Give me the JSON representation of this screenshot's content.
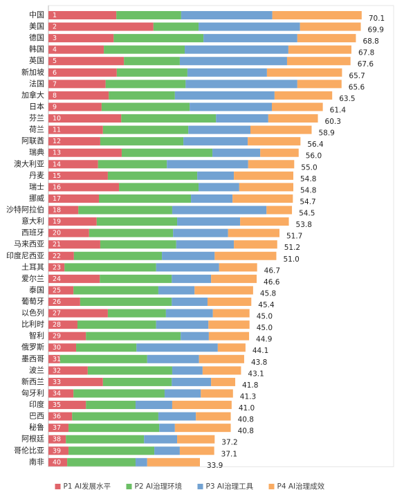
{
  "chart_data": {
    "type": "stacked-bar-horizontal",
    "categories": [
      "中国",
      "美国",
      "德国",
      "韩国",
      "英国",
      "新加坡",
      "法国",
      "加拿大",
      "日本",
      "芬兰",
      "荷兰",
      "阿联酋",
      "瑞典",
      "澳大利亚",
      "丹麦",
      "瑞士",
      "挪威",
      "沙特阿拉伯",
      "意大利",
      "西班牙",
      "马来西亚",
      "印度尼西亚",
      "土耳其",
      "爱尔兰",
      "泰国",
      "葡萄牙",
      "以色列",
      "比利时",
      "智利",
      "俄罗斯",
      "墨西哥",
      "波兰",
      "新西兰",
      "匈牙利",
      "印度",
      "巴西",
      "秘鲁",
      "阿根廷",
      "哥伦比亚",
      "南非"
    ],
    "ranks": [
      1,
      2,
      3,
      4,
      5,
      6,
      7,
      8,
      9,
      10,
      11,
      12,
      13,
      14,
      15,
      16,
      17,
      18,
      19,
      20,
      21,
      22,
      23,
      24,
      25,
      26,
      27,
      28,
      29,
      30,
      31,
      32,
      33,
      34,
      35,
      36,
      37,
      38,
      39,
      40
    ],
    "totals": [
      70.1,
      69.9,
      68.8,
      67.8,
      67.6,
      65.7,
      65.6,
      63.5,
      61.4,
      60.3,
      58.9,
      56.4,
      56.0,
      55.0,
      54.8,
      54.8,
      54.7,
      54.5,
      53.8,
      51.7,
      51.2,
      51.0,
      46.7,
      46.6,
      45.8,
      45.4,
      45.0,
      45.0,
      44.9,
      44.1,
      43.8,
      43.1,
      41.8,
      41.3,
      41.0,
      40.8,
      40.8,
      37.2,
      37.1,
      33.9
    ],
    "total_labels": [
      "70.1",
      "69.9",
      "68.8",
      "67.8",
      "67.6",
      "65.7",
      "65.6",
      "63.5",
      "61.4",
      "60.3",
      "58.9",
      "56.4",
      "56.0",
      "55.0",
      "54.8",
      "54.8",
      "54.7",
      "54.5",
      "53.8",
      "51.7",
      "51.2",
      "51.0",
      "46.7",
      "46.6",
      "45.8",
      "45.4",
      "45.0",
      "45.0",
      "44.9",
      "44.1",
      "43.8",
      "43.1",
      "41.8",
      "41.3",
      "41.0",
      "40.8",
      "40.8",
      "37.2",
      "37.1",
      "33.9"
    ],
    "series": [
      {
        "name": "P1 AI发展水平",
        "color": "#e0646a",
        "values": [
          15.2,
          23.5,
          14.6,
          12.4,
          16.9,
          15.3,
          12.8,
          13.5,
          11.9,
          16.3,
          12.2,
          11.6,
          16.4,
          11.1,
          13.3,
          15.8,
          11.3,
          6.7,
          10.8,
          9.1,
          11.6,
          5.7,
          3.6,
          11.5,
          5.6,
          7.1,
          13.3,
          6.5,
          8.4,
          6.2,
          2.6,
          8.8,
          12.2,
          5.6,
          8.4,
          5.3,
          4.5,
          3.9,
          4.5,
          4.2
        ]
      },
      {
        "name": "P2 AI治理环境",
        "color": "#6cbf66",
        "values": [
          14.5,
          10.1,
          20.1,
          18.1,
          12.5,
          15.8,
          17.9,
          14.8,
          19.7,
          21.2,
          19.1,
          18.6,
          20.3,
          15.4,
          20.0,
          17.8,
          20.6,
          21.0,
          18.0,
          18.8,
          17.0,
          19.7,
          20.5,
          16.1,
          19.0,
          20.5,
          13.0,
          17.6,
          21.2,
          13.5,
          19.5,
          18.9,
          15.4,
          20.4,
          11.1,
          19.3,
          20.3,
          17.5,
          19.2,
          15.3
        ]
      },
      {
        "name": "P3 AI治理工具",
        "color": "#72a2d2",
        "values": [
          20.4,
          22.7,
          21.0,
          23.2,
          24.0,
          17.8,
          25.0,
          22.3,
          18.4,
          11.7,
          13.9,
          14.4,
          10.7,
          18.2,
          8.2,
          9.1,
          9.3,
          21.1,
          14.1,
          12.3,
          12.9,
          11.8,
          14.1,
          8.8,
          8.1,
          8.0,
          10.5,
          11.7,
          6.3,
          18.2,
          11.6,
          6.8,
          8.8,
          8.1,
          8.2,
          8.4,
          3.5,
          7.4,
          5.7,
          2.6
        ]
      },
      {
        "name": "P4 AI治理成效",
        "color": "#f9ab62",
        "values": [
          20.0,
          13.6,
          13.1,
          14.1,
          14.2,
          16.8,
          9.9,
          12.9,
          11.4,
          11.1,
          13.7,
          11.8,
          8.6,
          10.3,
          13.3,
          12.1,
          13.5,
          5.7,
          10.9,
          11.5,
          9.7,
          13.8,
          8.5,
          10.2,
          13.1,
          9.8,
          8.2,
          9.2,
          9.0,
          6.2,
          10.1,
          8.6,
          5.4,
          7.2,
          13.3,
          7.8,
          12.5,
          8.4,
          7.7,
          11.8
        ]
      }
    ],
    "xlim": [
      0,
      77.4
    ]
  }
}
